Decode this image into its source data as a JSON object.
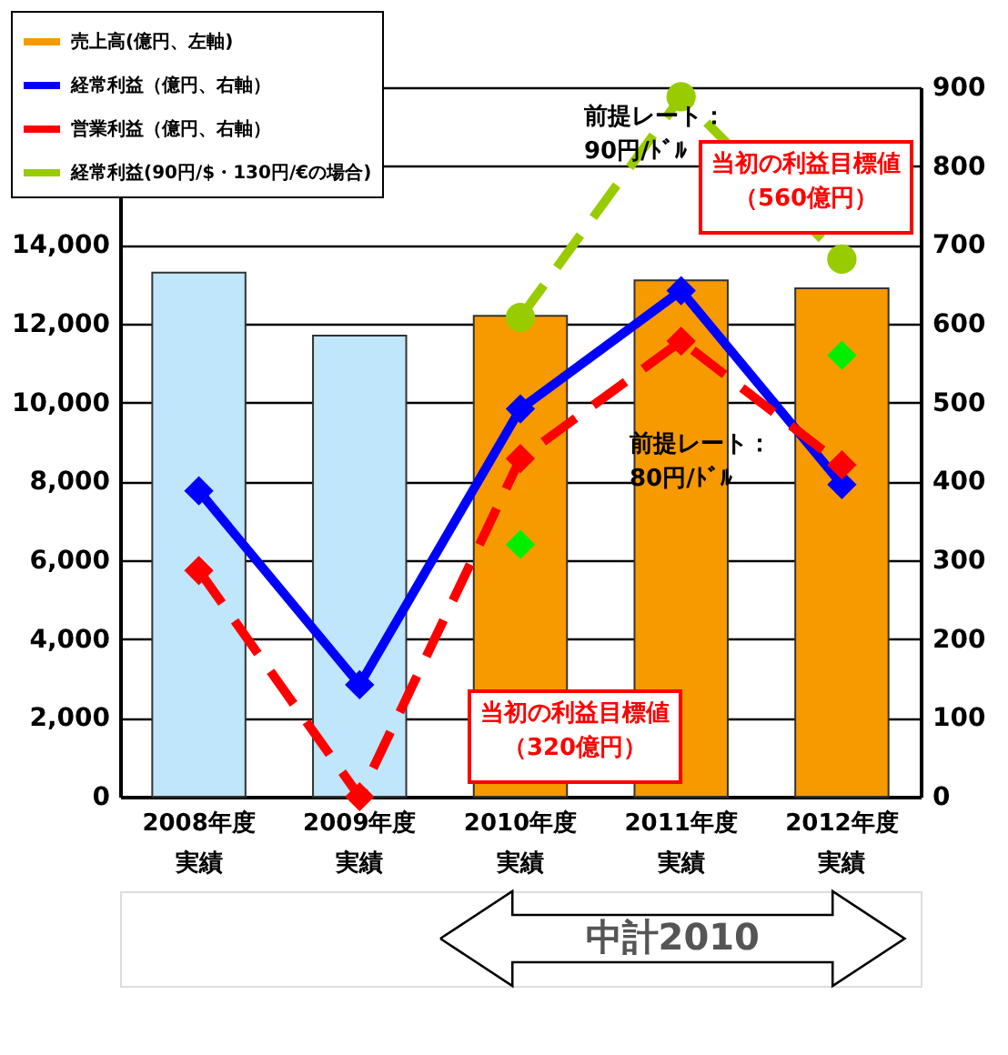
{
  "chart_data": {
    "type": "bar",
    "categories": [
      "2008年度実績",
      "2009年度実績",
      "2010年度実績",
      "2011年度実績",
      "2012年度実績"
    ],
    "series": [
      {
        "name": "売上高(億円、左軸)",
        "color": "#f79a00",
        "colors": [
          "#bfe6fa",
          "#bfe6fa",
          "#f79a00",
          "#f79a00",
          "#f79a00"
        ],
        "values": [
          13300,
          11700,
          12200,
          13100,
          12900
        ]
      },
      {
        "name": "経常利益（億円、右軸）",
        "type": "line",
        "axis": "y2",
        "color": "#0000ff",
        "marker": "diamond",
        "line_style": "solid",
        "values": [
          388,
          142,
          492,
          642,
          396
        ]
      },
      {
        "name": "営業利益（億円、右軸）",
        "type": "line",
        "axis": "y2",
        "color": "#ff0000",
        "marker": "diamond",
        "line_style": "dashed",
        "values": [
          287,
          0,
          429,
          578,
          421
        ]
      },
      {
        "name": "経常利益(90円/$・130円/€の場合)",
        "type": "line",
        "axis": "y2",
        "color": "#99cc00",
        "marker": "circle",
        "line_style": "dashed",
        "values": [
          null,
          null,
          608,
          888,
          682
        ]
      },
      {
        "type": "scatter",
        "axis": "y2",
        "color": "#00ee00",
        "marker": "diamond",
        "values": [
          null,
          null,
          320,
          null,
          560
        ]
      }
    ],
    "ylim": [
      0,
      18000
    ],
    "yticks": [
      0,
      {
        "value": 2000,
        "label": "2,000"
      },
      {
        "value": 4000,
        "label": "4,000"
      },
      {
        "value": 6000,
        "label": "6,000"
      },
      {
        "value": 8000,
        "label": "8,000"
      },
      {
        "value": 10000,
        "label": "10,000"
      },
      {
        "value": 12000,
        "label": "12,000"
      },
      {
        "value": 14000,
        "label": "14,000"
      }
    ],
    "y2lim": [
      0,
      900
    ],
    "y2ticks": [
      0,
      100,
      200,
      300,
      400,
      500,
      600,
      700,
      800,
      900
    ],
    "grid": "y",
    "legend": "top left",
    "annotations": [
      "当初の利益目標値（320億円）",
      "当初の利益目標値（560億円）",
      "前提レート：90円/ﾄﾞﾙ",
      "前提レート：80円/ﾄﾞﾙ",
      "中計2010"
    ]
  }
}
